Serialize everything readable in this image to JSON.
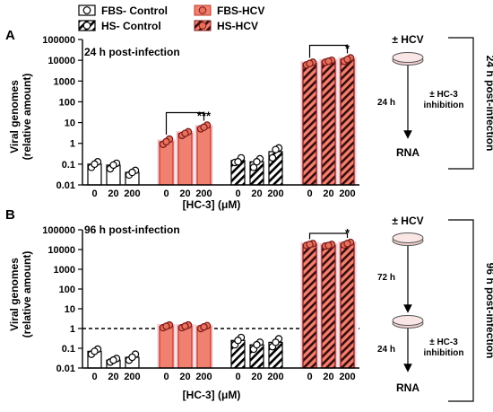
{
  "legend": [
    {
      "label": "FBS- Control",
      "fill": "white",
      "hatch": false
    },
    {
      "label": "FBS-HCV",
      "fill": "salmon",
      "hatch": false
    },
    {
      "label": "HS- Control",
      "fill": "white",
      "hatch": true
    },
    {
      "label": "HS-HCV",
      "fill": "salmon",
      "hatch": true
    }
  ],
  "colors": {
    "hcv_fill": "#f08070",
    "glow": "#f7c6cc",
    "point_fill": "#e8705c",
    "axis": "#000000"
  },
  "chart_data": [
    {
      "panel_letter": "A",
      "type": "bar",
      "title": "24 h post-infection",
      "xlabel": "[HC-3] (μM)",
      "ylabel_line1": "Viral genomes",
      "ylabel_line2": "(relative amount)",
      "y_scale": "log",
      "ylim": [
        0.01,
        100000
      ],
      "y_ticks": [
        "0.01",
        "0.1",
        "1",
        "10",
        "100",
        "1000",
        "10000",
        "100000"
      ],
      "dashed_line": null,
      "groups": [
        {
          "name": "FBS- Control",
          "tick_labels": [
            "0",
            "20",
            "200"
          ],
          "values": [
            0.1,
            0.09,
            0.04
          ],
          "points": [
            [
              0.07,
              0.13,
              0.1
            ],
            [
              0.06,
              0.11,
              0.09
            ],
            [
              0.03,
              0.05,
              0.04
            ]
          ]
        },
        {
          "name": "FBS-HCV",
          "tick_labels": [
            "0",
            "20",
            "200"
          ],
          "values": [
            1.2,
            3.0,
            6.0
          ],
          "points": [
            [
              0.9,
              1.6,
              1.2
            ],
            [
              2.4,
              3.6,
              3.0
            ],
            [
              5.0,
              7.5,
              6.0
            ]
          ]
        },
        {
          "name": "HS- Control",
          "tick_labels": [
            "0",
            "20",
            "200"
          ],
          "values": [
            0.15,
            0.13,
            0.4
          ],
          "points": [
            [
              0.12,
              0.2,
              0.13
            ],
            [
              0.07,
              0.18,
              0.13
            ],
            [
              0.2,
              0.6,
              0.5
            ]
          ]
        },
        {
          "name": "HS-HCV",
          "tick_labels": [
            "0",
            "20",
            "200"
          ],
          "values": [
            7000,
            9000,
            11000
          ],
          "points": [
            [
              6000,
              8000,
              7000
            ],
            [
              8000,
              10000,
              9000
            ],
            [
              9000,
              13000,
              11000
            ]
          ]
        }
      ],
      "significance": [
        {
          "group": "FBS-HCV",
          "from_bar": 0,
          "to_bar": 2,
          "label": "***"
        },
        {
          "group": "HS-HCV",
          "from_bar": 0,
          "to_bar": 2,
          "label": "*"
        }
      ]
    },
    {
      "panel_letter": "B",
      "type": "bar",
      "title": "96 h post-infection",
      "xlabel": "[HC-3] (μM)",
      "ylabel_line1": "Viral genomes",
      "ylabel_line2": "(relative amount)",
      "y_scale": "log",
      "ylim": [
        0.01,
        100000
      ],
      "y_ticks": [
        "0.01",
        "0.1",
        "1",
        "10",
        "100",
        "1000",
        "10000",
        "100000"
      ],
      "dashed_line": 1,
      "groups": [
        {
          "name": "FBS- Control",
          "tick_labels": [
            "0",
            "20",
            "200"
          ],
          "values": [
            0.07,
            0.025,
            0.035
          ],
          "points": [
            [
              0.05,
              0.09,
              0.07
            ],
            [
              0.02,
              0.03,
              0.025
            ],
            [
              0.025,
              0.05,
              0.035
            ]
          ]
        },
        {
          "name": "FBS-HCV",
          "tick_labels": [
            "0",
            "20",
            "200"
          ],
          "values": [
            1.3,
            1.3,
            1.2
          ],
          "points": [
            [
              1.1,
              1.5,
              1.3
            ],
            [
              1.1,
              1.5,
              1.3
            ],
            [
              1.0,
              1.4,
              1.2
            ]
          ]
        },
        {
          "name": "HS- Control",
          "tick_labels": [
            "0",
            "20",
            "200"
          ],
          "values": [
            0.25,
            0.15,
            0.2
          ],
          "points": [
            [
              0.15,
              0.35,
              0.25
            ],
            [
              0.09,
              0.2,
              0.15
            ],
            [
              0.12,
              0.3,
              0.2
            ]
          ]
        },
        {
          "name": "HS-HCV",
          "tick_labels": [
            "0",
            "20",
            "200"
          ],
          "values": [
            18000,
            16000,
            20000
          ],
          "points": [
            [
              16000,
              20000,
              18000
            ],
            [
              15000,
              18000,
              16000
            ],
            [
              17000,
              23000,
              20000
            ]
          ]
        }
      ],
      "significance": [
        {
          "group": "HS-HCV",
          "from_bar": 0,
          "to_bar": 2,
          "label": "*"
        }
      ]
    }
  ],
  "schematics": [
    {
      "top_label": "± HCV",
      "steps": [
        {
          "time": "24 h",
          "note_line1": "± HC-3",
          "note_line2": "inhibition"
        }
      ],
      "end_label": "RNA",
      "side_label": "24 h post-infection"
    },
    {
      "top_label": "± HCV",
      "steps": [
        {
          "time": "72 h",
          "note_line1": "",
          "note_line2": ""
        },
        {
          "time": "24 h",
          "note_line1": "± HC-3",
          "note_line2": "inhibition"
        }
      ],
      "end_label": "RNA",
      "side_label": "96 h post-infection"
    }
  ]
}
